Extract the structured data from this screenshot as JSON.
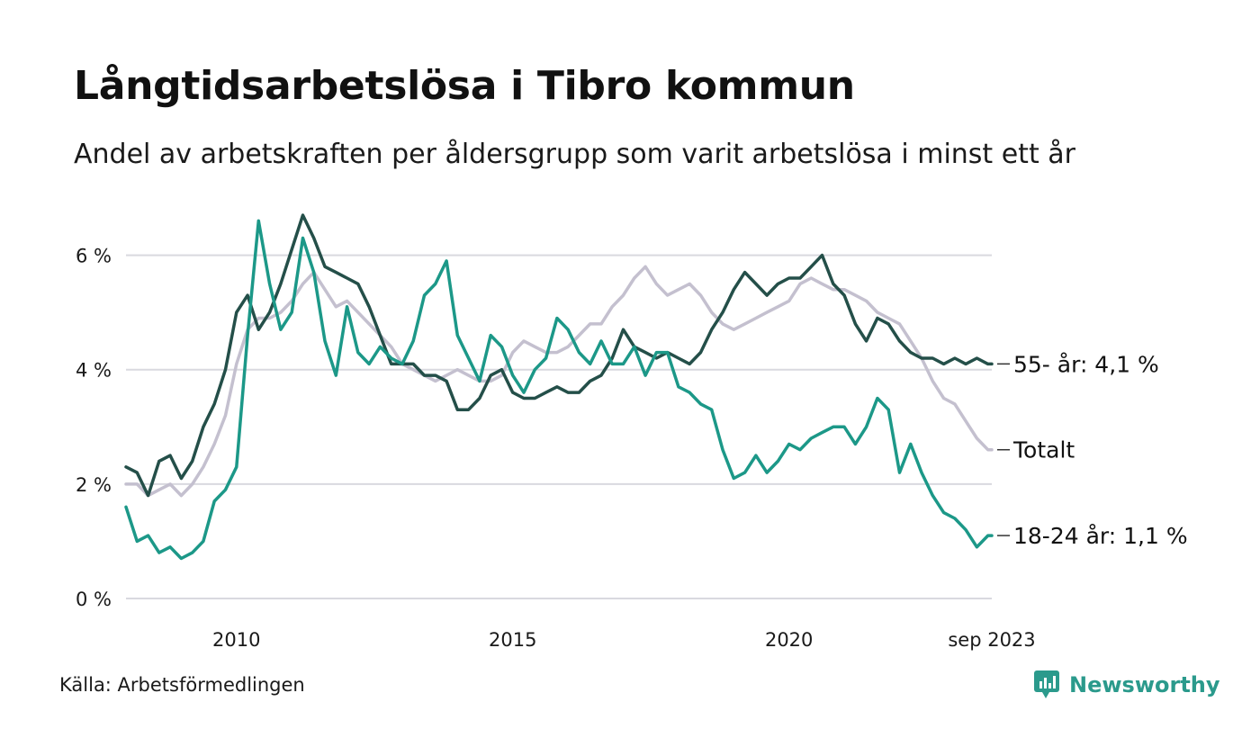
{
  "title": "Långtidsarbetslösa i Tibro kommun",
  "subtitle": "Andel av arbetskraften per åldersgrupp som varit arbetslösa i minst ett år",
  "source": "Källa: Arbetsförmedlingen",
  "brand": "Newsworthy",
  "logo_icon": "newsworthy-logo-icon",
  "colors": {
    "series_55": "#244f49",
    "series_total": "#c4c0cf",
    "series_18_24": "#1c9888",
    "grid": "#d9d9df",
    "brand": "#2b9a8c"
  },
  "chart_data": {
    "type": "line",
    "title": "Långtidsarbetslösa i Tibro kommun",
    "subtitle": "Andel av arbetskraften per åldersgrupp som varit arbetslösa i minst ett år",
    "xlabel": "",
    "ylabel": "",
    "x_start": "2008-01",
    "x_end": "2023-09",
    "xlim": [
      2008.0,
      2023.67
    ],
    "ylim": [
      0,
      7
    ],
    "y_ticks": [
      0,
      2,
      4,
      6
    ],
    "y_tick_labels": [
      "0 %",
      "2 %",
      "4 %",
      "6 %"
    ],
    "x_ticks": [
      2010,
      2015,
      2020,
      2023.67
    ],
    "x_tick_labels": [
      "2010",
      "2015",
      "2020",
      "sep 2023"
    ],
    "grid": true,
    "series": [
      {
        "name": "Totalt",
        "end_label": "Totalt",
        "color": "#c4c0cf",
        "x": [
          2008.0,
          2008.2,
          2008.4,
          2008.6,
          2008.8,
          2009.0,
          2009.2,
          2009.4,
          2009.6,
          2009.8,
          2010.0,
          2010.2,
          2010.4,
          2010.6,
          2010.8,
          2011.0,
          2011.2,
          2011.4,
          2011.6,
          2011.8,
          2012.0,
          2012.2,
          2012.4,
          2012.6,
          2012.8,
          2013.0,
          2013.2,
          2013.4,
          2013.6,
          2013.8,
          2014.0,
          2014.2,
          2014.4,
          2014.6,
          2014.8,
          2015.0,
          2015.2,
          2015.4,
          2015.6,
          2015.8,
          2016.0,
          2016.2,
          2016.4,
          2016.6,
          2016.8,
          2017.0,
          2017.2,
          2017.4,
          2017.6,
          2017.8,
          2018.0,
          2018.2,
          2018.4,
          2018.6,
          2018.8,
          2019.0,
          2019.2,
          2019.4,
          2019.6,
          2019.8,
          2020.0,
          2020.2,
          2020.4,
          2020.6,
          2020.8,
          2021.0,
          2021.2,
          2021.4,
          2021.6,
          2021.8,
          2022.0,
          2022.2,
          2022.4,
          2022.6,
          2022.8,
          2023.0,
          2023.2,
          2023.4,
          2023.6,
          2023.67
        ],
        "values": [
          2.0,
          2.0,
          1.8,
          1.9,
          2.0,
          1.8,
          2.0,
          2.3,
          2.7,
          3.2,
          4.1,
          4.7,
          4.9,
          4.9,
          5.0,
          5.2,
          5.5,
          5.7,
          5.4,
          5.1,
          5.2,
          5.0,
          4.8,
          4.6,
          4.4,
          4.1,
          4.0,
          3.9,
          3.8,
          3.9,
          4.0,
          3.9,
          3.8,
          3.8,
          3.9,
          4.3,
          4.5,
          4.4,
          4.3,
          4.3,
          4.4,
          4.6,
          4.8,
          4.8,
          5.1,
          5.3,
          5.6,
          5.8,
          5.5,
          5.3,
          5.4,
          5.5,
          5.3,
          5.0,
          4.8,
          4.7,
          4.8,
          4.9,
          5.0,
          5.1,
          5.2,
          5.5,
          5.6,
          5.5,
          5.4,
          5.4,
          5.3,
          5.2,
          5.0,
          4.9,
          4.8,
          4.5,
          4.2,
          3.8,
          3.5,
          3.4,
          3.1,
          2.8,
          2.6,
          2.6
        ]
      },
      {
        "name": "55- år",
        "end_label": "55- år: 4,1 %",
        "color": "#244f49",
        "x": [
          2008.0,
          2008.2,
          2008.4,
          2008.6,
          2008.8,
          2009.0,
          2009.2,
          2009.4,
          2009.6,
          2009.8,
          2010.0,
          2010.2,
          2010.4,
          2010.6,
          2010.8,
          2011.0,
          2011.2,
          2011.4,
          2011.6,
          2011.8,
          2012.0,
          2012.2,
          2012.4,
          2012.6,
          2012.8,
          2013.0,
          2013.2,
          2013.4,
          2013.6,
          2013.8,
          2014.0,
          2014.2,
          2014.4,
          2014.6,
          2014.8,
          2015.0,
          2015.2,
          2015.4,
          2015.6,
          2015.8,
          2016.0,
          2016.2,
          2016.4,
          2016.6,
          2016.8,
          2017.0,
          2017.2,
          2017.4,
          2017.6,
          2017.8,
          2018.0,
          2018.2,
          2018.4,
          2018.6,
          2018.8,
          2019.0,
          2019.2,
          2019.4,
          2019.6,
          2019.8,
          2020.0,
          2020.2,
          2020.4,
          2020.6,
          2020.8,
          2021.0,
          2021.2,
          2021.4,
          2021.6,
          2021.8,
          2022.0,
          2022.2,
          2022.4,
          2022.6,
          2022.8,
          2023.0,
          2023.2,
          2023.4,
          2023.6,
          2023.67
        ],
        "values": [
          2.3,
          2.2,
          1.8,
          2.4,
          2.5,
          2.1,
          2.4,
          3.0,
          3.4,
          4.0,
          5.0,
          5.3,
          4.7,
          5.0,
          5.5,
          6.1,
          6.7,
          6.3,
          5.8,
          5.7,
          5.6,
          5.5,
          5.1,
          4.6,
          4.1,
          4.1,
          4.1,
          3.9,
          3.9,
          3.8,
          3.3,
          3.3,
          3.5,
          3.9,
          4.0,
          3.6,
          3.5,
          3.5,
          3.6,
          3.7,
          3.6,
          3.6,
          3.8,
          3.9,
          4.2,
          4.7,
          4.4,
          4.3,
          4.2,
          4.3,
          4.2,
          4.1,
          4.3,
          4.7,
          5.0,
          5.4,
          5.7,
          5.5,
          5.3,
          5.5,
          5.6,
          5.6,
          5.8,
          6.0,
          5.5,
          5.3,
          4.8,
          4.5,
          4.9,
          4.8,
          4.5,
          4.3,
          4.2,
          4.2,
          4.1,
          4.2,
          4.1,
          4.2,
          4.1,
          4.1
        ]
      },
      {
        "name": "18-24 år",
        "end_label": "18-24 år: 1,1 %",
        "color": "#1c9888",
        "x": [
          2008.0,
          2008.2,
          2008.4,
          2008.6,
          2008.8,
          2009.0,
          2009.2,
          2009.4,
          2009.6,
          2009.8,
          2010.0,
          2010.2,
          2010.4,
          2010.6,
          2010.8,
          2011.0,
          2011.2,
          2011.4,
          2011.6,
          2011.8,
          2012.0,
          2012.2,
          2012.4,
          2012.6,
          2012.8,
          2013.0,
          2013.2,
          2013.4,
          2013.6,
          2013.8,
          2014.0,
          2014.2,
          2014.4,
          2014.6,
          2014.8,
          2015.0,
          2015.2,
          2015.4,
          2015.6,
          2015.8,
          2016.0,
          2016.2,
          2016.4,
          2016.6,
          2016.8,
          2017.0,
          2017.2,
          2017.4,
          2017.6,
          2017.8,
          2018.0,
          2018.2,
          2018.4,
          2018.6,
          2018.8,
          2019.0,
          2019.2,
          2019.4,
          2019.6,
          2019.8,
          2020.0,
          2020.2,
          2020.4,
          2020.6,
          2020.8,
          2021.0,
          2021.2,
          2021.4,
          2021.6,
          2021.8,
          2022.0,
          2022.2,
          2022.4,
          2022.6,
          2022.8,
          2023.0,
          2023.2,
          2023.4,
          2023.6,
          2023.67
        ],
        "values": [
          1.6,
          1.0,
          1.1,
          0.8,
          0.9,
          0.7,
          0.8,
          1.0,
          1.7,
          1.9,
          2.3,
          4.6,
          6.6,
          5.5,
          4.7,
          5.0,
          6.3,
          5.7,
          4.5,
          3.9,
          5.1,
          4.3,
          4.1,
          4.4,
          4.2,
          4.1,
          4.5,
          5.3,
          5.5,
          5.9,
          4.6,
          4.2,
          3.8,
          4.6,
          4.4,
          3.9,
          3.6,
          4.0,
          4.2,
          4.9,
          4.7,
          4.3,
          4.1,
          4.5,
          4.1,
          4.1,
          4.4,
          3.9,
          4.3,
          4.3,
          3.7,
          3.6,
          3.4,
          3.3,
          2.6,
          2.1,
          2.2,
          2.5,
          2.2,
          2.4,
          2.7,
          2.6,
          2.8,
          2.9,
          3.0,
          3.0,
          2.7,
          3.0,
          3.5,
          3.3,
          2.2,
          2.7,
          2.2,
          1.8,
          1.5,
          1.4,
          1.2,
          0.9,
          1.1,
          1.1
        ]
      }
    ]
  }
}
